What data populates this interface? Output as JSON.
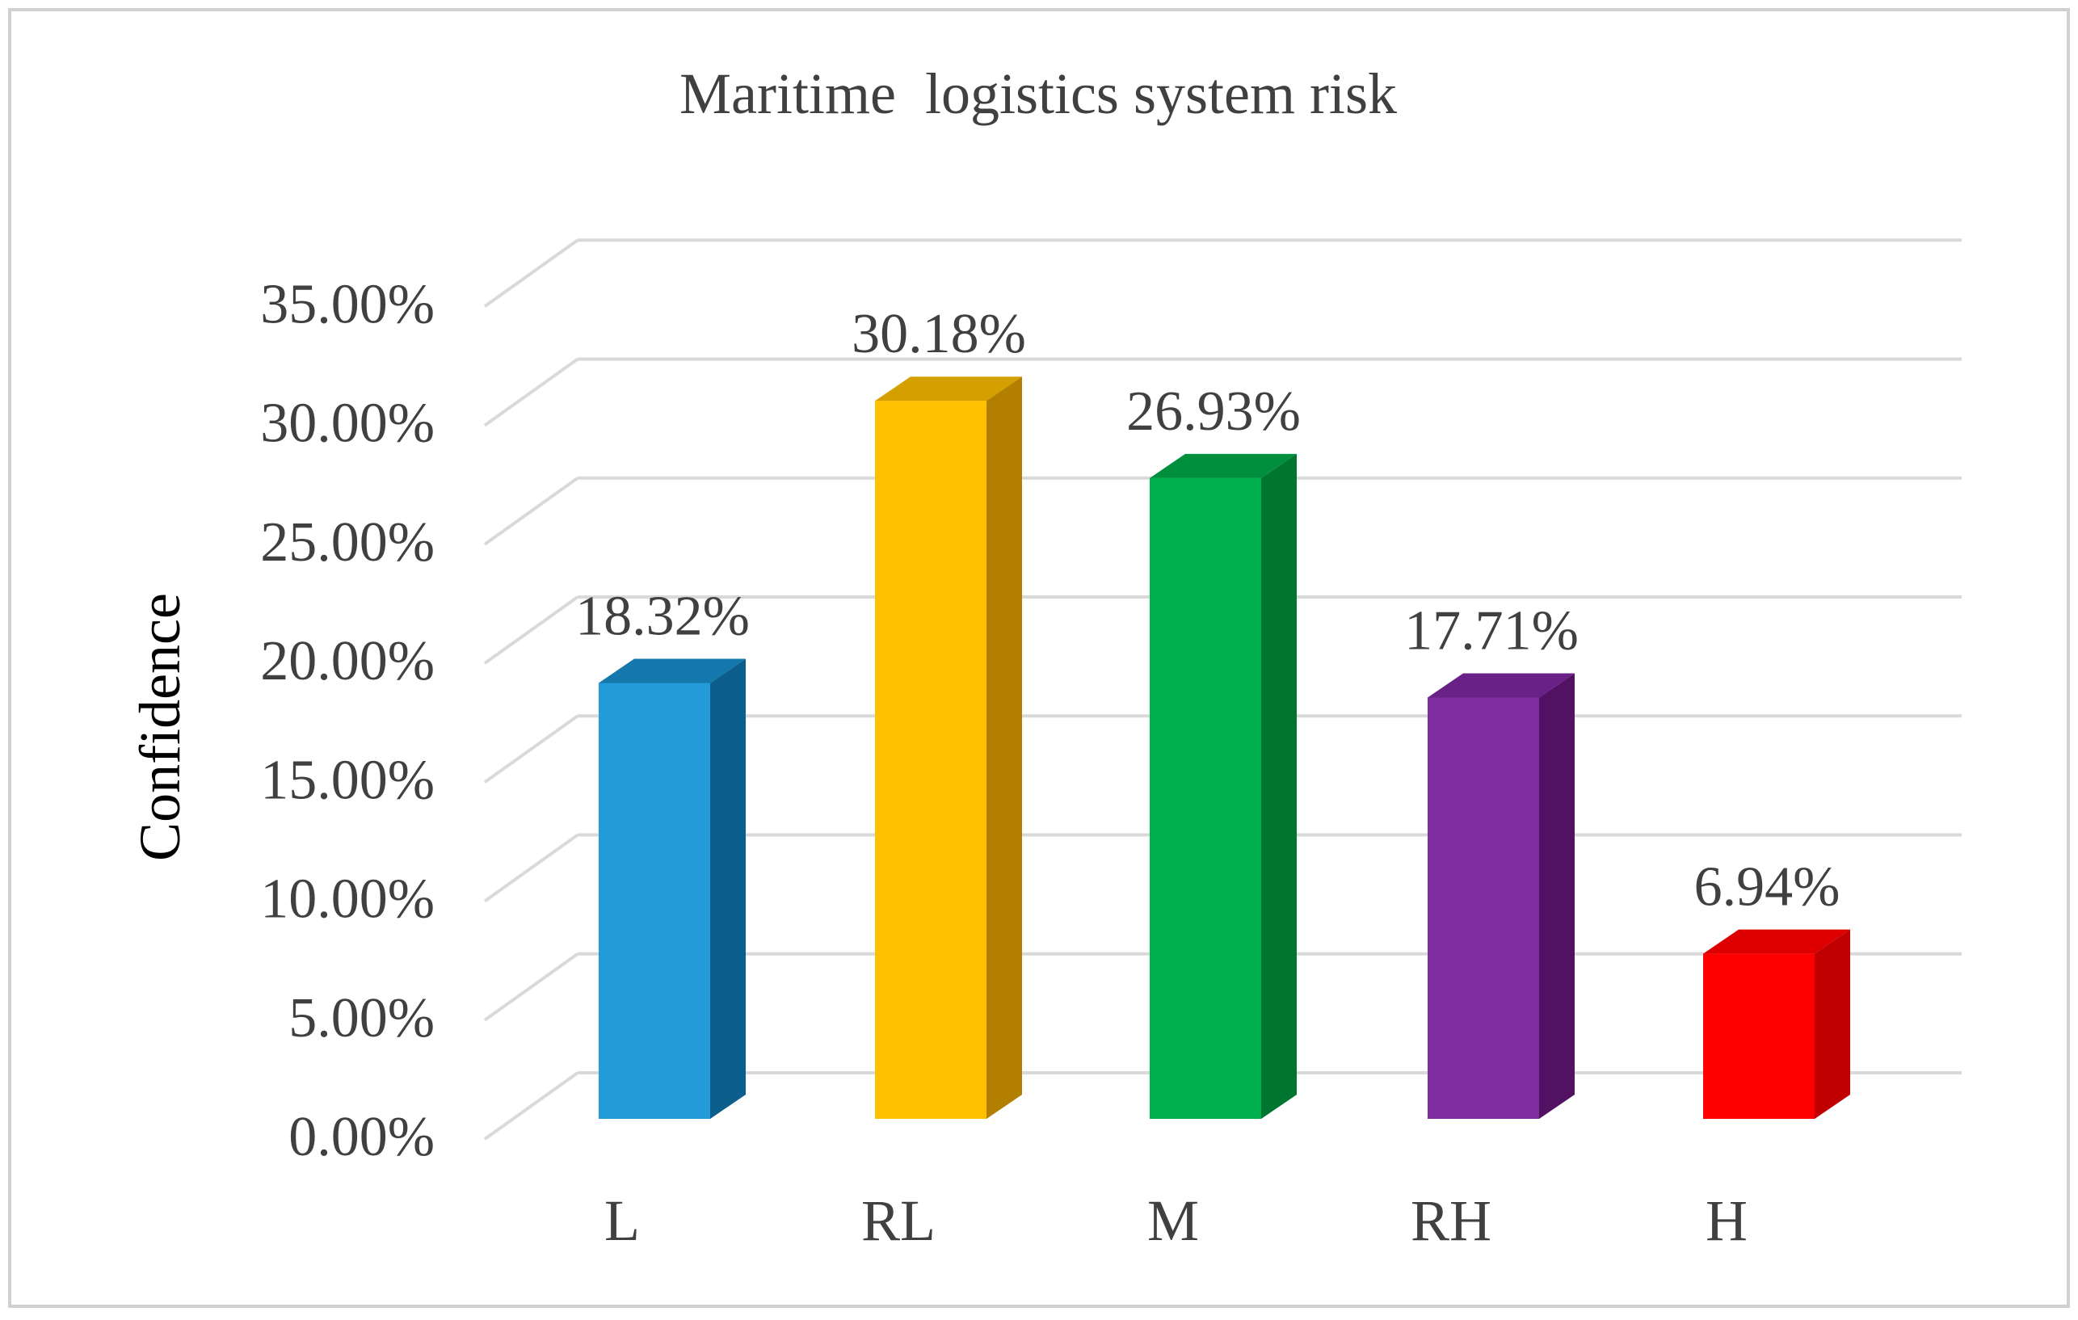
{
  "chart_data": {
    "type": "bar",
    "title": "Maritime  logistics system risk",
    "xlabel": "",
    "ylabel": "Confidence",
    "categories": [
      "L",
      "RL",
      "M",
      "RH",
      "H"
    ],
    "values": [
      18.32,
      30.18,
      26.93,
      17.71,
      6.94
    ],
    "value_labels": [
      "18.32%",
      "30.18%",
      "26.93%",
      "17.71%",
      "6.94%"
    ],
    "y_ticks": [
      0,
      5,
      10,
      15,
      20,
      25,
      30,
      35
    ],
    "y_tick_labels": [
      "0.00%",
      "5.00%",
      "10.00%",
      "15.00%",
      "20.00%",
      "25.00%",
      "30.00%",
      "35.00%"
    ],
    "ylim": [
      0,
      37.5
    ],
    "grid": true,
    "legend": "none",
    "bar_colors": [
      {
        "front": "#239bd8",
        "side": "#0c5f8d",
        "top": "#1478ac"
      },
      {
        "front": "#ffc000",
        "side": "#b27f00",
        "top": "#d69f00"
      },
      {
        "front": "#00b04f",
        "side": "#007530",
        "top": "#008f3d"
      },
      {
        "front": "#7f2c9f",
        "side": "#521264",
        "top": "#6a2187"
      },
      {
        "front": "#ff0000",
        "side": "#c00000",
        "top": "#de0000"
      }
    ],
    "text_color": "#404040",
    "grid_color": "#d9d9d9",
    "frame_color": "#d0d0d0"
  }
}
